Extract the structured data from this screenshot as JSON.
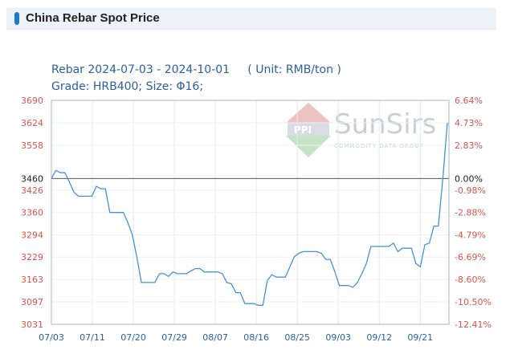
{
  "header": {
    "title": "China Rebar Spot Price"
  },
  "watermark": {
    "brand": "SunSirs",
    "tagline": "COMMODITY DATA GROUP"
  },
  "chart_data": {
    "type": "line",
    "title": "Rebar 2024-07-03 - 2024-10-01     ( Unit: RMB/ton )",
    "subtitle": "Grade: HRB400; Size: Φ16;",
    "base_value": 3460,
    "ylim": [
      3031,
      3690
    ],
    "yticks": [
      3031,
      3097,
      3163,
      3229,
      3294,
      3360,
      3426,
      3460,
      3492,
      3558,
      3624,
      3690
    ],
    "yticks_labels_left": [
      "3031",
      "3097",
      "3163",
      "3229",
      "3294",
      "3360",
      "3426",
      "3460",
      "3558",
      "3624",
      "3690"
    ],
    "yticks_right": [
      {
        "value": 3690,
        "label": "6.64%"
      },
      {
        "value": 3624,
        "label": "4.73%"
      },
      {
        "value": 3558,
        "label": "2.83%"
      },
      {
        "value": 3460,
        "label": "0.00%"
      },
      {
        "value": 3426,
        "label": "-0.98%"
      },
      {
        "value": 3360,
        "label": "-2.88%"
      },
      {
        "value": 3294,
        "label": "-4.79%"
      },
      {
        "value": 3229,
        "label": "-6.69%"
      },
      {
        "value": 3163,
        "label": "-8.60%"
      },
      {
        "value": 3097,
        "label": "-10.50%"
      },
      {
        "value": 3031,
        "label": "-12.41%"
      }
    ],
    "x_labels": [
      "07/03",
      "07/11",
      "07/20",
      "07/29",
      "08/07",
      "08/16",
      "08/25",
      "09/03",
      "09/12",
      "09/21"
    ],
    "grid": true,
    "series": [
      {
        "color": "#4a90d9",
        "values": [
          3460,
          3484,
          3477,
          3477,
          3450,
          3420,
          3408,
          3408,
          3408,
          3408,
          3437,
          3430,
          3430,
          3360,
          3360,
          3360,
          3360,
          3330,
          3294,
          3229,
          3154,
          3154,
          3154,
          3154,
          3180,
          3180,
          3172,
          3185,
          3180,
          3180,
          3180,
          3188,
          3195,
          3195,
          3185,
          3185,
          3185,
          3185,
          3180,
          3154,
          3150,
          3124,
          3124,
          3092,
          3092,
          3092,
          3087,
          3087,
          3160,
          3177,
          3170,
          3170,
          3170,
          3200,
          3230,
          3240,
          3245,
          3245,
          3245,
          3245,
          3240,
          3222,
          3222,
          3186,
          3145,
          3145,
          3145,
          3140,
          3154,
          3180,
          3210,
          3260,
          3260,
          3260,
          3260,
          3260,
          3270,
          3245,
          3255,
          3255,
          3255,
          3210,
          3200,
          3265,
          3270,
          3320,
          3320,
          3460,
          3624
        ]
      }
    ]
  }
}
